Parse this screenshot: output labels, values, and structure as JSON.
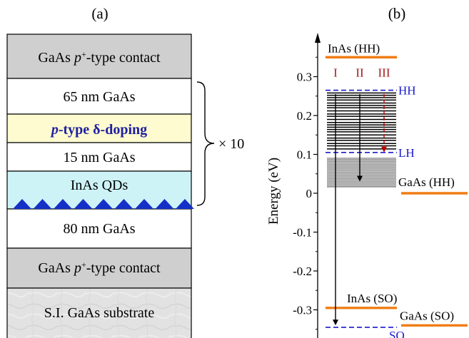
{
  "panel_a": {
    "label": "(a)",
    "layers": [
      {
        "pre": "GaAs ",
        "em": "p",
        "sup": "+",
        "post": "-type contact",
        "kind": "contact"
      },
      {
        "text": "65 nm GaAs",
        "kind": "plain"
      },
      {
        "em": "p",
        "post": "-type δ-doping",
        "kind": "doping"
      },
      {
        "text": "15 nm GaAs",
        "kind": "plain"
      },
      {
        "text": "InAs QDs",
        "kind": "qd"
      },
      {
        "text": "80 nm GaAs",
        "kind": "plain"
      },
      {
        "pre": "GaAs ",
        "em": "p",
        "sup": "+",
        "post": "-type contact",
        "kind": "contact"
      },
      {
        "text": "S.I. GaAs substrate",
        "kind": "substrate"
      }
    ],
    "repeat_label": "× 10",
    "colors": {
      "contact": "#cfcfcf",
      "plain": "#ffffff",
      "doping": "#fdfbcf",
      "doping_text": "#1f1fa0",
      "qd": "#cdf3f7",
      "qd_triangles": "#1430c8",
      "substrate": "#e4e4e4"
    }
  },
  "panel_b": {
    "label": "(b)",
    "ylabel": "Energy (eV)",
    "yticks": [
      "0.3",
      "0.2",
      "0.1",
      "0",
      "-0.1",
      "-0.2",
      "-0.3"
    ],
    "levels": {
      "InAs_HH": {
        "label": "InAs (HH)",
        "energy": 0.35
      },
      "HH": {
        "label": "HH",
        "energy": 0.265
      },
      "LH": {
        "label": "LH",
        "energy": 0.105
      },
      "GaAs_HH": {
        "label": "GaAs (HH)",
        "energy": 0.0
      },
      "InAs_SO": {
        "label": "InAs (SO)",
        "energy": -0.295
      },
      "GaAs_SO": {
        "label": "GaAs (SO)",
        "energy": -0.34
      },
      "SO": {
        "label": "SO",
        "energy": -0.345
      }
    },
    "transitions": [
      {
        "label": "I",
        "from": 0.255,
        "to": -0.34
      },
      {
        "label": "II",
        "from": 0.255,
        "to": 0.03
      },
      {
        "label": "III",
        "from": 0.255,
        "to": 0.105
      }
    ],
    "bound_states_black": [
      0.258,
      0.252,
      0.246,
      0.24,
      0.232,
      0.226,
      0.22,
      0.212,
      0.204,
      0.198,
      0.19,
      0.182,
      0.176,
      0.17,
      0.164,
      0.158,
      0.15,
      0.142,
      0.136,
      0.128,
      0.122,
      0.114
    ],
    "bound_states_gray": [
      0.09,
      0.085,
      0.08,
      0.076,
      0.072,
      0.068,
      0.064,
      0.06,
      0.056,
      0.052,
      0.048,
      0.044,
      0.04,
      0.036,
      0.032,
      0.028,
      0.024,
      0.02
    ],
    "colors": {
      "orange": "#f07d14",
      "blue": "#1a1acc",
      "red": "#c00000",
      "gray_band": "#9a9a9a",
      "gray_line": "#c8c8c8"
    }
  }
}
